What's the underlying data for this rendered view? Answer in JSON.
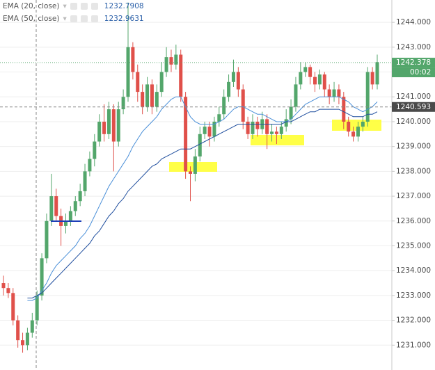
{
  "chart_data": {
    "type": "candlestick",
    "up_color": "#53a66b",
    "down_color": "#e0504a",
    "grid": true,
    "ylim": [
      1230.0,
      1244.9
    ],
    "yticks": [
      {
        "value": 1231,
        "label": "1231.000"
      },
      {
        "value": 1232,
        "label": "1232.000"
      },
      {
        "value": 1233,
        "label": "1233.000"
      },
      {
        "value": 1234,
        "label": "1234.000"
      },
      {
        "value": 1235,
        "label": "1235.000"
      },
      {
        "value": 1236,
        "label": "1236.000"
      },
      {
        "value": 1237,
        "label": "1237.000"
      },
      {
        "value": 1238,
        "label": "1238.000"
      },
      {
        "value": 1239,
        "label": "1239.000"
      },
      {
        "value": 1240,
        "label": "1240.000"
      },
      {
        "value": 1241,
        "label": "1241.000"
      },
      {
        "value": 1242,
        "label": "1242.000"
      },
      {
        "value": 1243,
        "label": "1243.000"
      },
      {
        "value": 1244,
        "label": "1244.000"
      }
    ],
    "open": [
      1233.5,
      1233.3,
      1233.1,
      1232.0,
      1231.2,
      1231.0,
      1231.5,
      1232.0,
      1233.0,
      1234.5,
      1236.0,
      1237.0,
      1236.2,
      1235.8,
      1236.0,
      1236.4,
      1236.8,
      1237.2,
      1238.0,
      1238.5,
      1239.2,
      1240.0,
      1239.5,
      1240.5,
      1239.2,
      1240.5,
      1241.0,
      1243.0,
      1242.0,
      1241.2,
      1240.6,
      1241.5,
      1240.6,
      1241.2,
      1242.0,
      1242.6,
      1242.3,
      1242.7,
      1241.0,
      1238.0,
      1237.9,
      1238.6,
      1239.5,
      1239.8,
      1239.4,
      1240.0,
      1240.3,
      1241.0,
      1241.6,
      1242.0,
      1241.3,
      1240.0,
      1239.5,
      1240.0,
      1239.7,
      1240.1,
      1239.5,
      1239.6,
      1239.5,
      1239.8,
      1240.1,
      1240.6,
      1241.5,
      1242.0,
      1242.2,
      1241.8,
      1241.5,
      1241.9,
      1241.3,
      1241.0,
      1241.3,
      1241.0,
      1240.0,
      1239.6,
      1239.4,
      1239.8,
      1240.0,
      1242.0,
      1241.5
    ],
    "high": [
      1233.8,
      1233.5,
      1233.3,
      1232.2,
      1231.5,
      1231.7,
      1232.3,
      1233.2,
      1234.7,
      1236.3,
      1237.9,
      1237.3,
      1236.5,
      1236.3,
      1236.6,
      1237.0,
      1237.5,
      1238.3,
      1238.8,
      1239.5,
      1240.3,
      1240.7,
      1240.8,
      1240.7,
      1240.8,
      1241.3,
      1244.8,
      1243.2,
      1242.3,
      1241.5,
      1241.8,
      1241.7,
      1241.5,
      1242.4,
      1243.0,
      1242.9,
      1243.1,
      1242.9,
      1241.2,
      1238.2,
      1238.9,
      1239.8,
      1240.0,
      1240.0,
      1240.2,
      1240.6,
      1241.3,
      1241.9,
      1242.5,
      1242.2,
      1241.5,
      1240.2,
      1240.3,
      1240.2,
      1240.4,
      1240.3,
      1239.9,
      1239.8,
      1240.0,
      1240.5,
      1240.9,
      1241.8,
      1242.4,
      1242.4,
      1242.3,
      1242.0,
      1242.1,
      1242.0,
      1241.5,
      1241.6,
      1241.5,
      1241.2,
      1240.2,
      1239.8,
      1240.0,
      1240.2,
      1242.2,
      1242.2,
      1242.7
    ],
    "low": [
      1233.0,
      1232.9,
      1231.8,
      1230.9,
      1230.7,
      1230.8,
      1231.3,
      1231.8,
      1232.8,
      1234.3,
      1235.8,
      1236.0,
      1235.0,
      1235.5,
      1235.8,
      1236.2,
      1236.6,
      1237.0,
      1237.8,
      1238.2,
      1239.0,
      1239.2,
      1239.3,
      1238.0,
      1239.0,
      1240.3,
      1240.8,
      1241.7,
      1240.8,
      1240.3,
      1240.4,
      1240.3,
      1240.4,
      1241.0,
      1241.8,
      1242.0,
      1242.1,
      1240.8,
      1237.7,
      1236.8,
      1237.6,
      1238.4,
      1239.3,
      1239.0,
      1239.2,
      1239.8,
      1240.1,
      1240.8,
      1241.4,
      1241.0,
      1239.7,
      1239.3,
      1239.3,
      1239.4,
      1239.5,
      1238.9,
      1239.2,
      1239.1,
      1239.3,
      1239.6,
      1239.9,
      1240.4,
      1241.3,
      1241.8,
      1241.5,
      1241.2,
      1241.3,
      1241.0,
      1240.7,
      1240.8,
      1240.7,
      1239.7,
      1239.4,
      1239.2,
      1239.2,
      1239.6,
      1239.8,
      1241.3,
      1241.3
    ],
    "close": [
      1233.3,
      1233.1,
      1232.0,
      1231.2,
      1231.0,
      1231.5,
      1232.0,
      1233.0,
      1234.5,
      1236.0,
      1237.0,
      1236.2,
      1235.8,
      1236.0,
      1236.4,
      1236.8,
      1237.2,
      1238.0,
      1238.5,
      1239.2,
      1240.0,
      1239.5,
      1240.5,
      1239.2,
      1240.5,
      1241.0,
      1243.0,
      1242.0,
      1241.2,
      1240.6,
      1241.5,
      1240.6,
      1241.2,
      1242.0,
      1242.6,
      1242.3,
      1242.7,
      1241.0,
      1238.0,
      1237.9,
      1238.6,
      1239.5,
      1239.8,
      1239.4,
      1240.0,
      1240.3,
      1241.0,
      1241.6,
      1242.0,
      1241.3,
      1240.0,
      1239.5,
      1240.0,
      1239.7,
      1240.1,
      1239.5,
      1239.6,
      1239.5,
      1239.8,
      1240.1,
      1240.6,
      1241.5,
      1242.0,
      1242.2,
      1241.8,
      1241.5,
      1241.9,
      1241.3,
      1241.0,
      1241.3,
      1241.0,
      1240.0,
      1239.6,
      1239.4,
      1239.8,
      1240.0,
      1242.0,
      1241.5,
      1242.4
    ],
    "indicators": [
      {
        "name": "EMA (20, close)",
        "value": 1232.7908,
        "color": "#4a8fd8",
        "values": [
          null,
          null,
          null,
          null,
          null,
          1232.8,
          1232.8,
          1232.9,
          1233.2,
          1233.5,
          1233.9,
          1234.2,
          1234.4,
          1234.6,
          1234.8,
          1235.0,
          1235.3,
          1235.5,
          1235.8,
          1236.2,
          1236.6,
          1237.0,
          1237.4,
          1237.7,
          1238.0,
          1238.3,
          1238.6,
          1239.0,
          1239.3,
          1239.6,
          1239.8,
          1240.0,
          1240.2,
          1240.5,
          1240.7,
          1240.9,
          1241.0,
          1241.0,
          1240.6,
          1240.2,
          1240.0,
          1239.9,
          1239.9,
          1239.9,
          1239.9,
          1240.0,
          1240.1,
          1240.3,
          1240.5,
          1240.6,
          1240.6,
          1240.5,
          1240.4,
          1240.3,
          1240.3,
          1240.2,
          1240.1,
          1240.0,
          1240.0,
          1240.0,
          1240.1,
          1240.3,
          1240.5,
          1240.7,
          1240.8,
          1240.9,
          1241.0,
          1241.0,
          1241.0,
          1241.0,
          1241.0,
          1240.9,
          1240.8,
          1240.6,
          1240.5,
          1240.4,
          1240.5,
          1240.6,
          1240.8
        ]
      },
      {
        "name": "EMA (50, close)",
        "value": 1232.9631,
        "color": "#1f4e9e",
        "values": [
          null,
          null,
          null,
          null,
          null,
          1232.9,
          1232.9,
          1233.0,
          1233.1,
          1233.3,
          1233.5,
          1233.7,
          1233.9,
          1234.1,
          1234.3,
          1234.5,
          1234.7,
          1234.9,
          1235.1,
          1235.4,
          1235.6,
          1235.9,
          1236.2,
          1236.4,
          1236.7,
          1236.9,
          1237.2,
          1237.4,
          1237.6,
          1237.8,
          1238.0,
          1238.2,
          1238.3,
          1238.5,
          1238.6,
          1238.7,
          1238.8,
          1238.9,
          1238.9,
          1238.9,
          1239.0,
          1239.1,
          1239.2,
          1239.3,
          1239.4,
          1239.5,
          1239.6,
          1239.7,
          1239.8,
          1239.9,
          1239.9,
          1239.9,
          1239.9,
          1239.9,
          1239.9,
          1239.9,
          1239.9,
          1239.9,
          1239.9,
          1240.0,
          1240.0,
          1240.1,
          1240.2,
          1240.3,
          1240.4,
          1240.4,
          1240.5,
          1240.5,
          1240.5,
          1240.5,
          1240.5,
          1240.4,
          1240.3,
          1240.2,
          1240.2,
          1240.2,
          1240.3,
          1240.3,
          1240.4
        ]
      }
    ],
    "last_price": 1242.378,
    "last_price_color": "#53a66b",
    "countdown": "00:02",
    "crosshair_price": 1240.593
  }
}
